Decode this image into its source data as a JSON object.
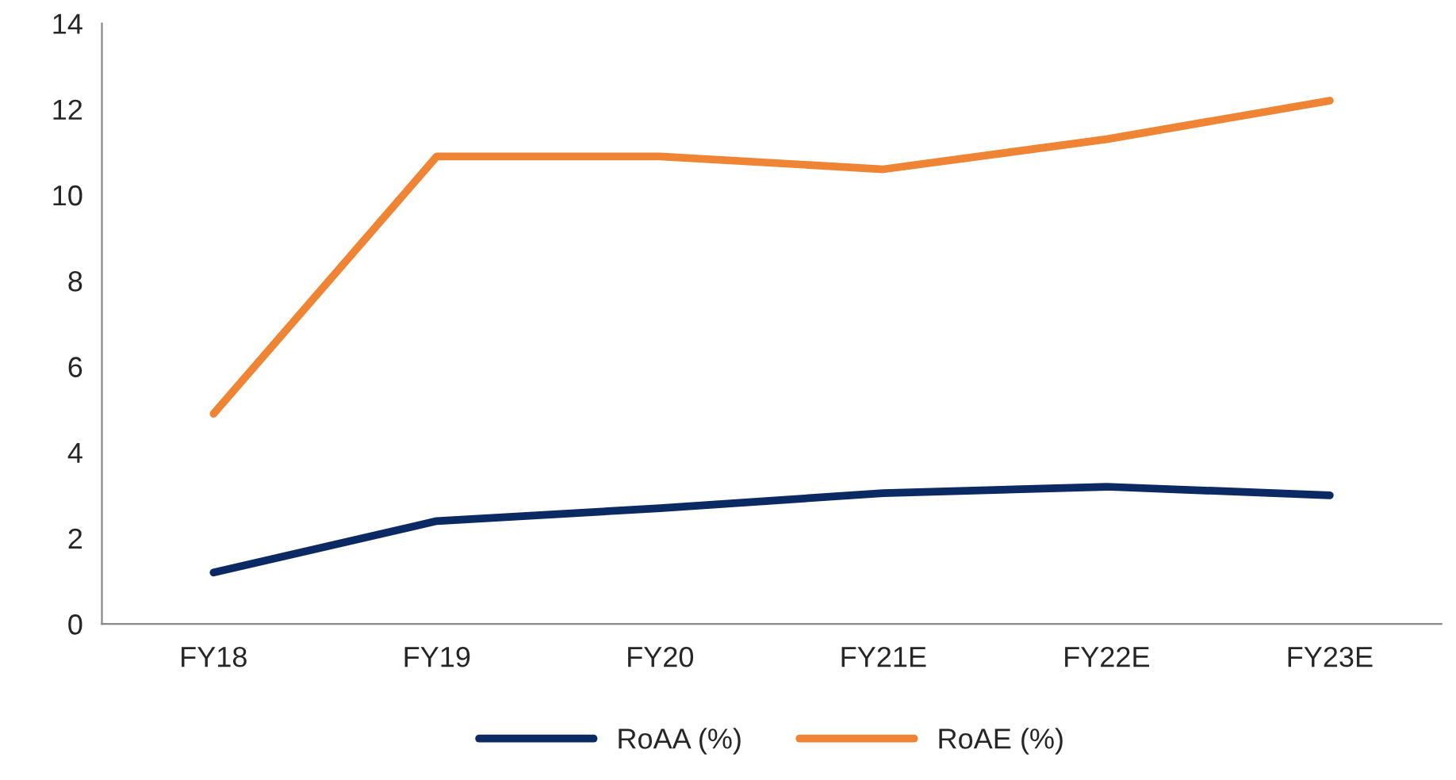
{
  "chart_data": {
    "type": "line",
    "categories": [
      "FY18",
      "FY19",
      "FY20",
      "FY21E",
      "FY22E",
      "FY23E"
    ],
    "series": [
      {
        "name": "RoAA (%)",
        "color": "#0b2a63",
        "values": [
          1.2,
          2.4,
          2.7,
          3.05,
          3.2,
          3.0
        ]
      },
      {
        "name": "RoAE (%)",
        "color": "#ee8434",
        "values": [
          4.9,
          10.9,
          10.9,
          10.6,
          11.3,
          12.2
        ]
      }
    ],
    "ylim": [
      0,
      14
    ],
    "yticks": [
      0,
      2,
      4,
      6,
      8,
      10,
      12,
      14
    ],
    "grid": false,
    "legend": "bottom",
    "marker": "none",
    "line_style": "solid"
  }
}
